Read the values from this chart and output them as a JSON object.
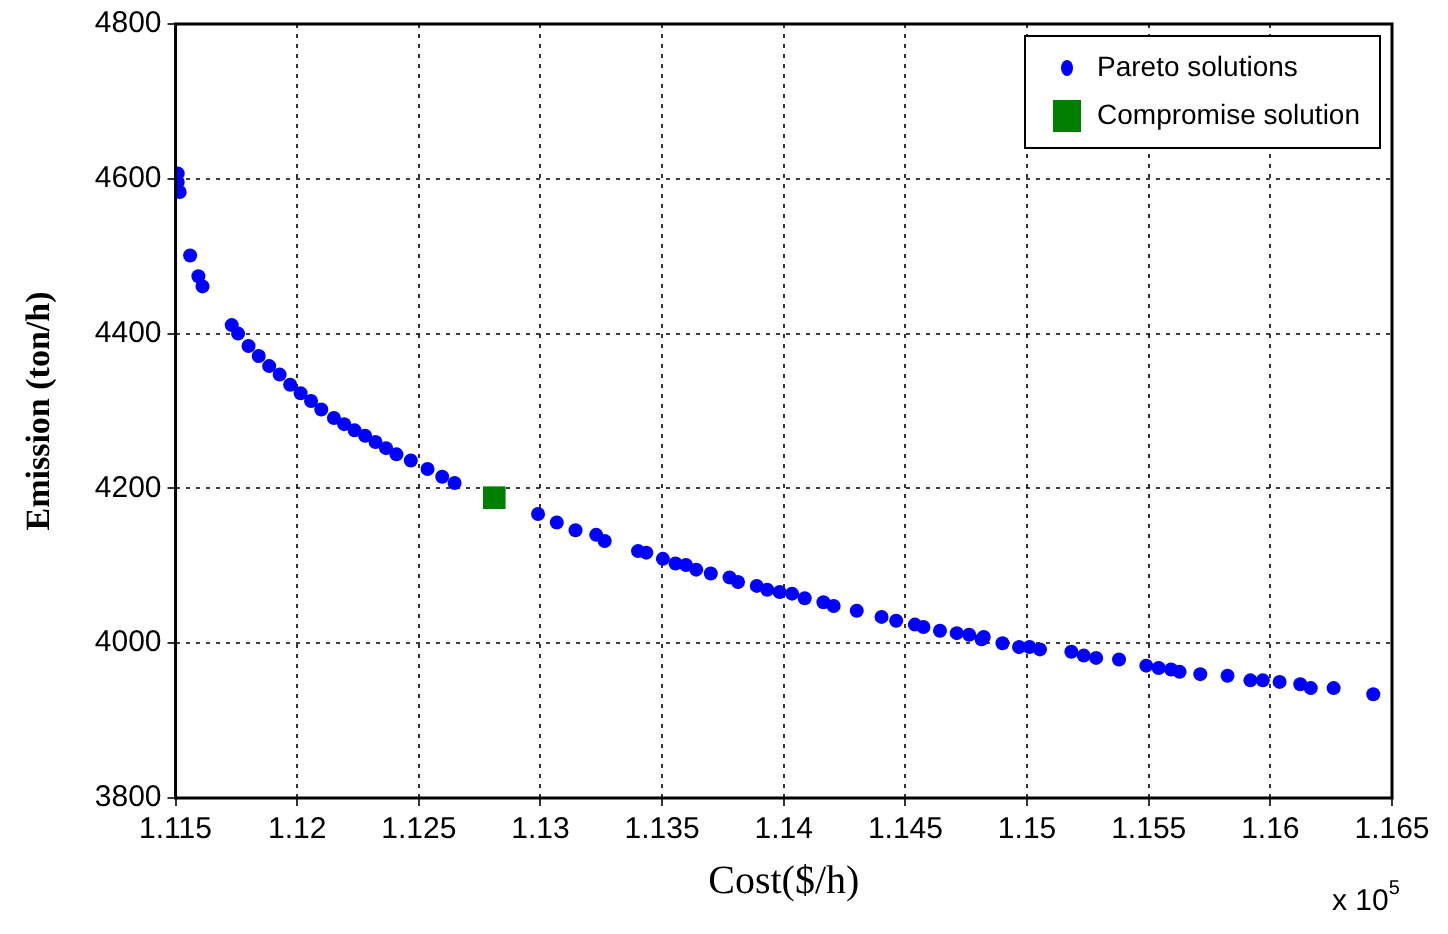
{
  "chart_data": {
    "type": "scatter",
    "xlabel": "Cost($/h)",
    "ylabel": "Emission (ton/h)",
    "xlim": [
      1.115,
      1.165
    ],
    "xticks": [
      1.115,
      1.12,
      1.125,
      1.13,
      1.135,
      1.14,
      1.145,
      1.15,
      1.155,
      1.16,
      1.165
    ],
    "ylim": [
      3800,
      4800
    ],
    "yticks": [
      3800,
      4000,
      4200,
      4400,
      4600,
      4800
    ],
    "grid": true,
    "legend": "top right",
    "annotations": [
      "x 10$^{5}$"
    ],
    "series": [
      {
        "name": "Pareto solutions",
        "color": "#0000ff",
        "marker": "circle",
        "x": [
          1.11509,
          1.11509,
          1.11517,
          1.1156,
          1.11594,
          1.11611,
          1.11731,
          1.11757,
          1.118,
          1.11842,
          1.11885,
          1.11928,
          1.11971,
          1.12014,
          1.12057,
          1.12099,
          1.12151,
          1.12193,
          1.12236,
          1.12279,
          1.12322,
          1.12365,
          1.12408,
          1.12467,
          1.12536,
          1.12596,
          1.12647,
          1.1299,
          1.13067,
          1.13144,
          1.13229,
          1.13264,
          1.13401,
          1.13435,
          1.13503,
          1.13555,
          1.13598,
          1.1364,
          1.137,
          1.13777,
          1.13812,
          1.13889,
          1.13932,
          1.13983,
          1.14034,
          1.14086,
          1.14163,
          1.14205,
          1.143,
          1.14402,
          1.14462,
          1.14539,
          1.14574,
          1.14642,
          1.14711,
          1.14762,
          1.14822,
          1.14813,
          1.14899,
          1.14967,
          1.1501,
          1.15053,
          1.15182,
          1.15233,
          1.15284,
          1.15378,
          1.1549,
          1.15541,
          1.15592,
          1.15627,
          1.15712,
          1.15824,
          1.15918,
          1.15969,
          1.16038,
          1.16123,
          1.16166,
          1.1626,
          1.16423
        ],
        "values": [
          4607,
          4596,
          4583,
          4501,
          4474,
          4461,
          4411,
          4400,
          4384,
          4371,
          4358,
          4347,
          4334,
          4323,
          4313,
          4302,
          4291,
          4283,
          4275,
          4268,
          4260,
          4252,
          4244,
          4236,
          4225,
          4215,
          4207,
          4167,
          4156,
          4146,
          4140,
          4132,
          4119,
          4117,
          4109,
          4103,
          4101,
          4095,
          4090,
          4085,
          4079,
          4074,
          4069,
          4066,
          4064,
          4058,
          4053,
          4048,
          4042,
          4034,
          4029,
          4024,
          4021,
          4016,
          4013,
          4011,
          4008,
          4005,
          4000,
          3995,
          3995,
          3992,
          3989,
          3984,
          3981,
          3979,
          3971,
          3968,
          3966,
          3963,
          3960,
          3958,
          3952,
          3952,
          3950,
          3947,
          3942,
          3942,
          3934
        ]
      },
      {
        "name": "Compromise solution",
        "color": "#008000",
        "marker": "square",
        "x": [
          1.1281
        ],
        "values": [
          4188
        ]
      }
    ]
  }
}
